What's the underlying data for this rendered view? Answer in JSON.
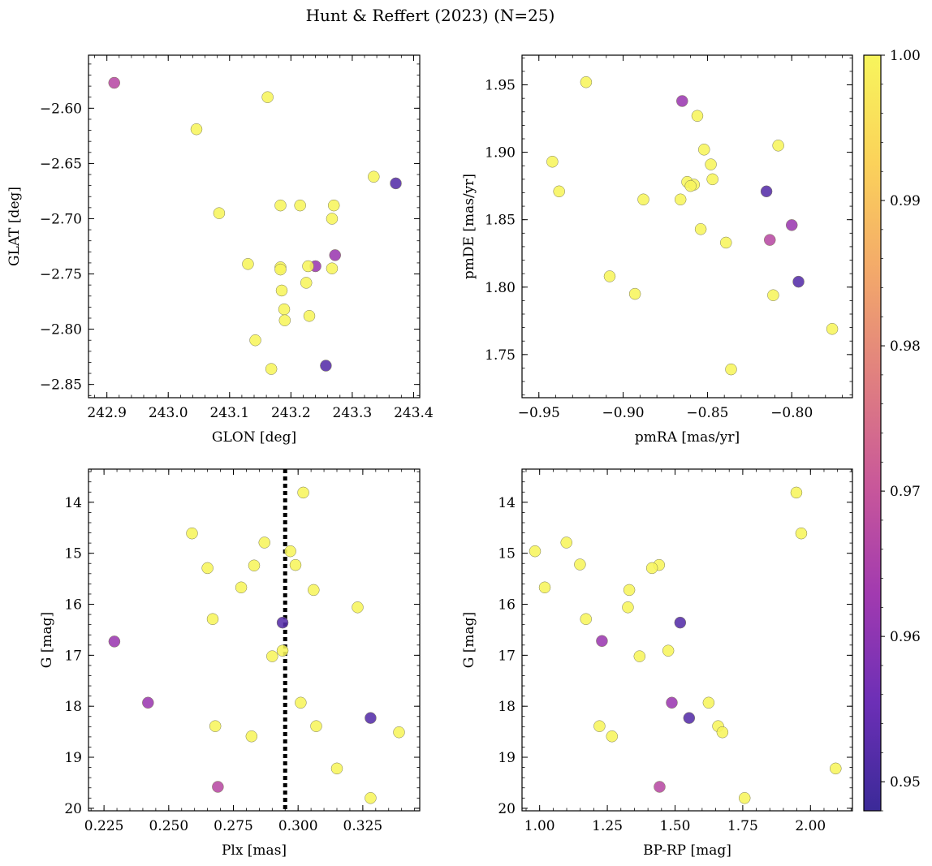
{
  "figure": {
    "title": "Hunt & Reffert (2023) (N=25)"
  },
  "colorbar": {
    "min": 0.948,
    "max": 1.0,
    "ticks": [
      "0.95",
      "0.96",
      "0.97",
      "0.98",
      "0.99",
      "1.00"
    ],
    "tick_values": [
      0.95,
      0.96,
      0.97,
      0.98,
      0.99,
      1.0
    ],
    "colormap": "plasma",
    "stops": [
      "#3b2a98",
      "#6c2fb6",
      "#a13ab0",
      "#c8579a",
      "#e07f80",
      "#f3a96a",
      "#fbd25a",
      "#f7f55c"
    ]
  },
  "chart_data": [
    {
      "type": "scatter",
      "xlabel": "GLON [deg]",
      "ylabel": "GLAT [deg]",
      "xlim": [
        242.87,
        243.41
      ],
      "ylim": [
        -2.862,
        -2.552
      ],
      "xticks": [
        242.9,
        243.0,
        243.1,
        243.2,
        243.3,
        243.4
      ],
      "xtick_labels": [
        "242.9",
        "243.0",
        "243.1",
        "243.2",
        "243.3",
        "243.4"
      ],
      "yticks": [
        -2.6,
        -2.65,
        -2.7,
        -2.75,
        -2.8,
        -2.85
      ],
      "ytick_labels": [
        "−2.60",
        "−2.65",
        "−2.70",
        "−2.75",
        "−2.80",
        "−2.85"
      ],
      "invert_y": false,
      "points": [
        {
          "x": 242.912,
          "y": -2.577,
          "c": 0.967
        },
        {
          "x": 243.162,
          "y": -2.59,
          "c": 1.0
        },
        {
          "x": 243.046,
          "y": -2.619,
          "c": 1.0
        },
        {
          "x": 243.335,
          "y": -2.662,
          "c": 1.0
        },
        {
          "x": 243.371,
          "y": -2.668,
          "c": 0.952
        },
        {
          "x": 243.183,
          "y": -2.688,
          "c": 1.0
        },
        {
          "x": 243.215,
          "y": -2.688,
          "c": 1.0
        },
        {
          "x": 243.27,
          "y": -2.688,
          "c": 1.0
        },
        {
          "x": 243.083,
          "y": -2.695,
          "c": 1.0
        },
        {
          "x": 243.267,
          "y": -2.7,
          "c": 1.0
        },
        {
          "x": 243.272,
          "y": -2.733,
          "c": 0.962
        },
        {
          "x": 243.13,
          "y": -2.741,
          "c": 1.0
        },
        {
          "x": 243.24,
          "y": -2.743,
          "c": 0.962
        },
        {
          "x": 243.228,
          "y": -2.743,
          "c": 1.0
        },
        {
          "x": 243.183,
          "y": -2.744,
          "c": 1.0
        },
        {
          "x": 243.267,
          "y": -2.745,
          "c": 1.0
        },
        {
          "x": 243.183,
          "y": -2.746,
          "c": 1.0
        },
        {
          "x": 243.225,
          "y": -2.758,
          "c": 1.0
        },
        {
          "x": 243.185,
          "y": -2.765,
          "c": 1.0
        },
        {
          "x": 243.189,
          "y": -2.782,
          "c": 1.0
        },
        {
          "x": 243.23,
          "y": -2.788,
          "c": 1.0
        },
        {
          "x": 243.19,
          "y": -2.792,
          "c": 1.0
        },
        {
          "x": 243.142,
          "y": -2.81,
          "c": 1.0
        },
        {
          "x": 243.257,
          "y": -2.833,
          "c": 0.952
        },
        {
          "x": 243.168,
          "y": -2.836,
          "c": 1.0
        }
      ]
    },
    {
      "type": "scatter",
      "xlabel": "pmRA [mas/yr]",
      "ylabel": "pmDE [mas/yr]",
      "xlim": [
        -0.96,
        -0.764
      ],
      "ylim": [
        1.718,
        1.972
      ],
      "xticks": [
        -0.95,
        -0.9,
        -0.85,
        -0.8
      ],
      "xtick_labels": [
        "−0.95",
        "−0.90",
        "−0.85",
        "−0.80"
      ],
      "yticks": [
        1.75,
        1.8,
        1.85,
        1.9,
        1.95
      ],
      "ytick_labels": [
        "1.75",
        "1.80",
        "1.85",
        "1.90",
        "1.95"
      ],
      "invert_y": false,
      "points": [
        {
          "x": -0.922,
          "y": 1.952,
          "c": 1.0
        },
        {
          "x": -0.865,
          "y": 1.938,
          "c": 0.962
        },
        {
          "x": -0.856,
          "y": 1.927,
          "c": 1.0
        },
        {
          "x": -0.808,
          "y": 1.905,
          "c": 1.0
        },
        {
          "x": -0.852,
          "y": 1.902,
          "c": 1.0
        },
        {
          "x": -0.942,
          "y": 1.893,
          "c": 1.0
        },
        {
          "x": -0.848,
          "y": 1.891,
          "c": 1.0
        },
        {
          "x": -0.938,
          "y": 1.871,
          "c": 1.0
        },
        {
          "x": -0.815,
          "y": 1.871,
          "c": 0.952
        },
        {
          "x": -0.847,
          "y": 1.88,
          "c": 1.0
        },
        {
          "x": -0.862,
          "y": 1.878,
          "c": 1.0
        },
        {
          "x": -0.858,
          "y": 1.876,
          "c": 1.0
        },
        {
          "x": -0.86,
          "y": 1.875,
          "c": 1.0
        },
        {
          "x": -0.888,
          "y": 1.865,
          "c": 1.0
        },
        {
          "x": -0.866,
          "y": 1.865,
          "c": 1.0
        },
        {
          "x": -0.8,
          "y": 1.846,
          "c": 0.962
        },
        {
          "x": -0.854,
          "y": 1.843,
          "c": 1.0
        },
        {
          "x": -0.813,
          "y": 1.835,
          "c": 0.967
        },
        {
          "x": -0.839,
          "y": 1.833,
          "c": 1.0
        },
        {
          "x": -0.908,
          "y": 1.808,
          "c": 1.0
        },
        {
          "x": -0.796,
          "y": 1.804,
          "c": 0.952
        },
        {
          "x": -0.893,
          "y": 1.795,
          "c": 1.0
        },
        {
          "x": -0.811,
          "y": 1.794,
          "c": 1.0
        },
        {
          "x": -0.776,
          "y": 1.769,
          "c": 1.0
        },
        {
          "x": -0.836,
          "y": 1.739,
          "c": 1.0
        }
      ]
    },
    {
      "type": "scatter",
      "xlabel": "Plx [mas]",
      "ylabel": "G [mag]",
      "xlim": [
        0.219,
        0.347
      ],
      "ylim": [
        13.35,
        20.05
      ],
      "xticks": [
        0.225,
        0.25,
        0.275,
        0.3,
        0.325
      ],
      "xtick_labels": [
        "0.225",
        "0.250",
        "0.275",
        "0.300",
        "0.325"
      ],
      "yticks": [
        14,
        15,
        16,
        17,
        18,
        19,
        20
      ],
      "ytick_labels": [
        "14",
        "15",
        "16",
        "17",
        "18",
        "19",
        "20"
      ],
      "invert_y": true,
      "vline": 0.295,
      "points": [
        {
          "x": 0.302,
          "y": 13.81,
          "c": 1.0
        },
        {
          "x": 0.259,
          "y": 14.61,
          "c": 1.0
        },
        {
          "x": 0.287,
          "y": 14.79,
          "c": 1.0
        },
        {
          "x": 0.297,
          "y": 14.96,
          "c": 1.0
        },
        {
          "x": 0.283,
          "y": 15.24,
          "c": 1.0
        },
        {
          "x": 0.299,
          "y": 15.23,
          "c": 1.0
        },
        {
          "x": 0.265,
          "y": 15.29,
          "c": 1.0
        },
        {
          "x": 0.278,
          "y": 15.67,
          "c": 1.0
        },
        {
          "x": 0.306,
          "y": 15.72,
          "c": 1.0
        },
        {
          "x": 0.323,
          "y": 16.06,
          "c": 1.0
        },
        {
          "x": 0.267,
          "y": 16.29,
          "c": 1.0
        },
        {
          "x": 0.294,
          "y": 16.36,
          "c": 0.952
        },
        {
          "x": 0.229,
          "y": 16.73,
          "c": 0.962
        },
        {
          "x": 0.294,
          "y": 16.91,
          "c": 1.0
        },
        {
          "x": 0.29,
          "y": 17.02,
          "c": 1.0
        },
        {
          "x": 0.242,
          "y": 17.93,
          "c": 0.962
        },
        {
          "x": 0.301,
          "y": 17.93,
          "c": 1.0
        },
        {
          "x": 0.328,
          "y": 18.23,
          "c": 0.952
        },
        {
          "x": 0.268,
          "y": 18.39,
          "c": 1.0
        },
        {
          "x": 0.307,
          "y": 18.39,
          "c": 1.0
        },
        {
          "x": 0.339,
          "y": 18.51,
          "c": 1.0
        },
        {
          "x": 0.282,
          "y": 18.59,
          "c": 1.0
        },
        {
          "x": 0.315,
          "y": 19.22,
          "c": 1.0
        },
        {
          "x": 0.269,
          "y": 19.58,
          "c": 0.967
        },
        {
          "x": 0.328,
          "y": 19.8,
          "c": 1.0
        }
      ]
    },
    {
      "type": "scatter",
      "xlabel": "BP-RP [mag]",
      "ylabel": "G [mag]",
      "xlim": [
        0.935,
        2.155
      ],
      "ylim": [
        13.35,
        20.05
      ],
      "xticks": [
        1.0,
        1.25,
        1.5,
        1.75,
        2.0
      ],
      "xtick_labels": [
        "1.00",
        "1.25",
        "1.50",
        "1.75",
        "2.00"
      ],
      "yticks": [
        14,
        15,
        16,
        17,
        18,
        19,
        20
      ],
      "ytick_labels": [
        "14",
        "15",
        "16",
        "17",
        "18",
        "19",
        "20"
      ],
      "invert_y": true,
      "points": [
        {
          "x": 1.948,
          "y": 13.81,
          "c": 1.0
        },
        {
          "x": 1.966,
          "y": 14.61,
          "c": 1.0
        },
        {
          "x": 1.099,
          "y": 14.79,
          "c": 1.0
        },
        {
          "x": 0.983,
          "y": 14.96,
          "c": 1.0
        },
        {
          "x": 1.149,
          "y": 15.22,
          "c": 1.0
        },
        {
          "x": 1.441,
          "y": 15.23,
          "c": 1.0
        },
        {
          "x": 1.415,
          "y": 15.29,
          "c": 1.0
        },
        {
          "x": 1.019,
          "y": 15.67,
          "c": 1.0
        },
        {
          "x": 1.331,
          "y": 15.72,
          "c": 1.0
        },
        {
          "x": 1.326,
          "y": 16.06,
          "c": 1.0
        },
        {
          "x": 1.171,
          "y": 16.29,
          "c": 1.0
        },
        {
          "x": 1.519,
          "y": 16.36,
          "c": 0.952
        },
        {
          "x": 1.23,
          "y": 16.72,
          "c": 0.962
        },
        {
          "x": 1.475,
          "y": 16.91,
          "c": 1.0
        },
        {
          "x": 1.369,
          "y": 17.02,
          "c": 1.0
        },
        {
          "x": 1.488,
          "y": 17.93,
          "c": 0.962
        },
        {
          "x": 1.624,
          "y": 17.93,
          "c": 1.0
        },
        {
          "x": 1.552,
          "y": 18.23,
          "c": 0.952
        },
        {
          "x": 1.221,
          "y": 18.39,
          "c": 1.0
        },
        {
          "x": 1.659,
          "y": 18.39,
          "c": 1.0
        },
        {
          "x": 1.675,
          "y": 18.51,
          "c": 1.0
        },
        {
          "x": 1.267,
          "y": 18.59,
          "c": 1.0
        },
        {
          "x": 2.093,
          "y": 19.22,
          "c": 1.0
        },
        {
          "x": 1.443,
          "y": 19.58,
          "c": 0.967
        },
        {
          "x": 1.757,
          "y": 19.8,
          "c": 1.0
        }
      ]
    }
  ]
}
